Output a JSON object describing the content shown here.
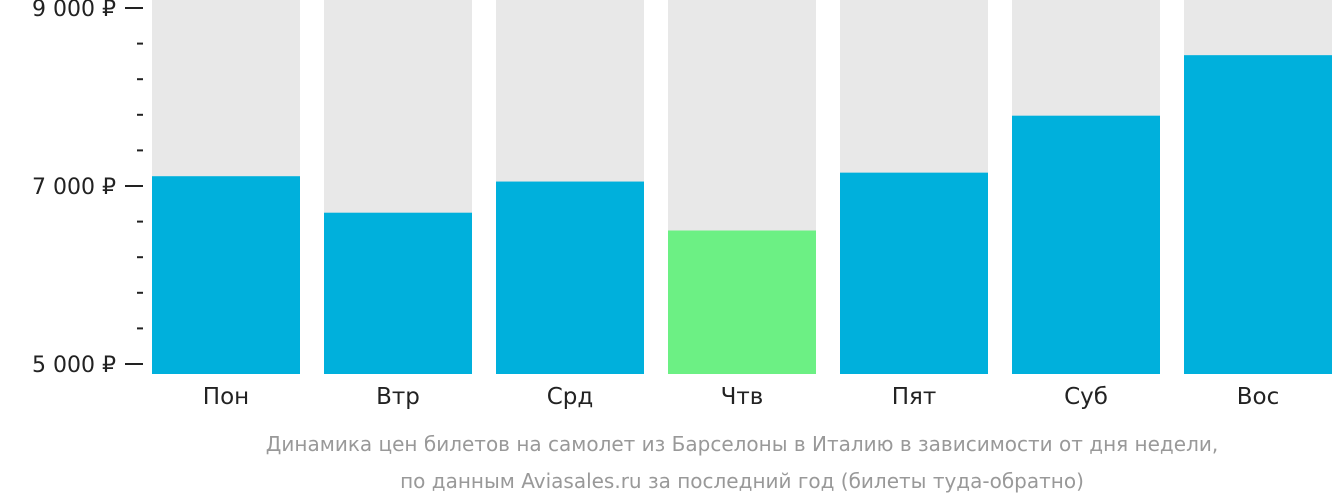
{
  "chart_data": {
    "type": "bar",
    "categories": [
      "Пон",
      "Втр",
      "Срд",
      "Чтв",
      "Пят",
      "Суб",
      "Вос"
    ],
    "values": [
      7110,
      6700,
      7050,
      6500,
      7150,
      7790,
      8470
    ],
    "highlight_index": 3,
    "ylim": [
      5000,
      9000
    ],
    "yticks": [
      5000,
      7000,
      9000
    ],
    "ytick_labels": [
      "5 000 ₽",
      "7 000 ₽",
      "9 000 ₽"
    ],
    "minor_ticks_per_interval": 5,
    "grid": false,
    "caption_line1": "Динамика цен билетов на самолет из Барселоны в Италию в зависимости от дня недели,",
    "caption_line2": "по данным Aviasales.ru за последний год (билеты туда-обратно)",
    "colors": {
      "bar": "#00b0dc",
      "highlight": "#6cf084",
      "background_bar": "#e8e8e8",
      "axis": "#222222",
      "caption": "#999999"
    }
  }
}
